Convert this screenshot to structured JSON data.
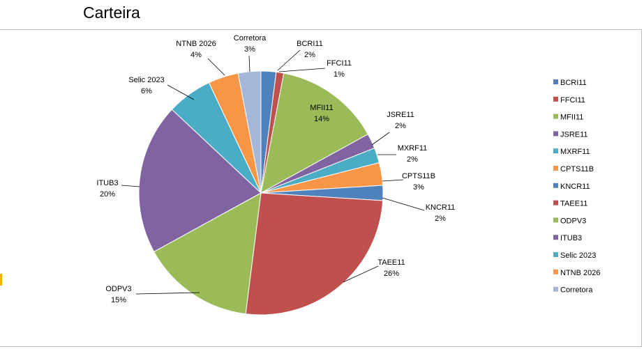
{
  "title": "Carteira",
  "chart_data": {
    "type": "pie",
    "title": "Carteira",
    "legend_position": "right",
    "slices": [
      {
        "name": "BCRI11",
        "value": 2,
        "label": "2%",
        "color": "#4f81bd"
      },
      {
        "name": "FFCI11",
        "value": 1,
        "label": "1%",
        "color": "#c0504d"
      },
      {
        "name": "MFII11",
        "value": 14,
        "label": "14%",
        "color": "#9bbb59"
      },
      {
        "name": "JSRE11",
        "value": 2,
        "label": "2%",
        "color": "#8064a2"
      },
      {
        "name": "MXRF11",
        "value": 2,
        "label": "2%",
        "color": "#4bacc6"
      },
      {
        "name": "CPTS11B",
        "value": 3,
        "label": "3%",
        "color": "#f79646"
      },
      {
        "name": "KNCR11",
        "value": 2,
        "label": "2%",
        "color": "#4f81bd"
      },
      {
        "name": "TAEE11",
        "value": 26,
        "label": "26%",
        "color": "#c0504d"
      },
      {
        "name": "ODPV3",
        "value": 15,
        "label": "15%",
        "color": "#9bbb59"
      },
      {
        "name": "ITUB3",
        "value": 20,
        "label": "20%",
        "color": "#8064a2"
      },
      {
        "name": "Selic 2023",
        "value": 6,
        "label": "6%",
        "color": "#4bacc6"
      },
      {
        "name": "NTNB  2026",
        "value": 4,
        "label": "4%",
        "color": "#f79646"
      },
      {
        "name": "Corretora",
        "value": 3,
        "label": "3%",
        "color": "#a5b7d8"
      }
    ]
  }
}
